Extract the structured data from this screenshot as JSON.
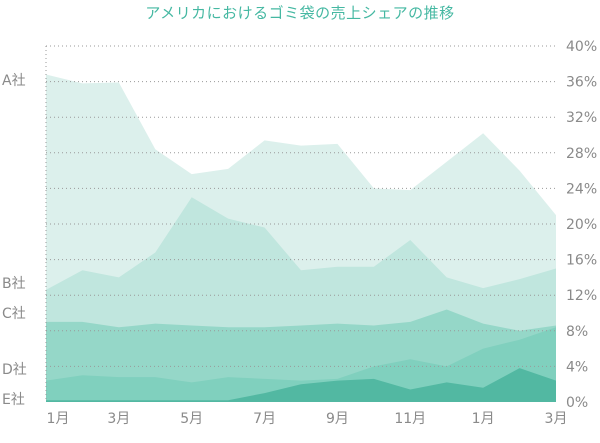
{
  "chart_data": {
    "type": "area",
    "title": "アメリカにおけるゴミ袋の売上シェアの推移",
    "x": [
      "1月",
      "2月",
      "3月",
      "4月",
      "5月",
      "6月",
      "7月",
      "8月",
      "9月",
      "10月",
      "11月",
      "12月",
      "1月",
      "2月",
      "3月"
    ],
    "x_tick_labels": [
      "1月",
      "3月",
      "5月",
      "7月",
      "9月",
      "11月",
      "1月",
      "3月"
    ],
    "y_ticks": [
      "0%",
      "4%",
      "8%",
      "12%",
      "16%",
      "20%",
      "24%",
      "28%",
      "32%",
      "36%",
      "40%"
    ],
    "ylim": [
      0,
      40
    ],
    "y_unit": "%",
    "grid": true,
    "series": [
      {
        "name": "A社",
        "color": "#dcf0ec",
        "values": [
          36.8,
          35.8,
          35.9,
          28.4,
          25.6,
          26.2,
          29.4,
          28.8,
          29.0,
          24.0,
          23.8,
          27.0,
          30.2,
          26.0,
          21.0
        ]
      },
      {
        "name": "B社",
        "color": "#c0e6de",
        "values": [
          12.6,
          14.8,
          14.0,
          16.8,
          23.0,
          20.6,
          19.6,
          14.8,
          15.2,
          15.2,
          18.2,
          14.0,
          12.8,
          13.8,
          15.0
        ]
      },
      {
        "name": "C社",
        "color": "#95d7c8",
        "values": [
          9.0,
          9.0,
          8.4,
          8.8,
          8.6,
          8.4,
          8.4,
          8.6,
          8.8,
          8.6,
          9.0,
          10.4,
          8.8,
          8.0,
          8.6
        ]
      },
      {
        "name": "D社",
        "color": "#80d0be",
        "values": [
          2.4,
          3.0,
          2.8,
          2.8,
          2.2,
          2.8,
          2.6,
          2.4,
          2.6,
          4.0,
          4.8,
          4.0,
          6.0,
          7.0,
          8.4
        ]
      },
      {
        "name": "E社",
        "color": "#52b8a2",
        "values": [
          0.2,
          0.2,
          0.2,
          0.2,
          0.2,
          0.2,
          1.0,
          2.0,
          2.4,
          2.6,
          1.4,
          2.2,
          1.6,
          3.8,
          2.4
        ]
      }
    ]
  }
}
